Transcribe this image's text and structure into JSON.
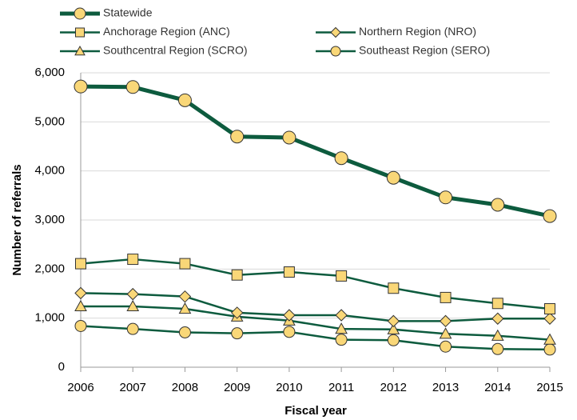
{
  "chart_data": {
    "type": "line",
    "x_label": "Fiscal year",
    "y_label": "Number of referrals",
    "categories": [
      "2006",
      "2007",
      "2008",
      "2009",
      "2010",
      "2011",
      "2012",
      "2013",
      "2014",
      "2015"
    ],
    "ylim": [
      0,
      6000
    ],
    "yticks": [
      0,
      {
        "value": 1000,
        "label": "1,000"
      },
      {
        "value": 2000,
        "label": "2,000"
      },
      {
        "value": 3000,
        "label": "3,000"
      },
      {
        "value": 4000,
        "label": "4,000"
      },
      {
        "value": 5000,
        "label": "5,000"
      },
      {
        "value": 6000,
        "label": "6,000"
      }
    ],
    "grid": true,
    "legend": "top",
    "marker_fill": "#f9d778",
    "series": [
      {
        "name": "Statewide",
        "color": "#0d5b3e",
        "marker": "circle",
        "line_width": 5,
        "values": [
          5720,
          5710,
          5440,
          4700,
          4680,
          4260,
          3860,
          3460,
          3310,
          3080
        ]
      },
      {
        "name": "Anchorage Region (ANC)",
        "color": "#0d5b3e",
        "marker": "square",
        "line_width": 2.5,
        "values": [
          2110,
          2200,
          2110,
          1880,
          1940,
          1860,
          1610,
          1420,
          1300,
          1190
        ]
      },
      {
        "name": "Northern Region (NRO)",
        "color": "#0d5b3e",
        "marker": "diamond",
        "line_width": 2.5,
        "values": [
          1510,
          1490,
          1440,
          1110,
          1060,
          1060,
          940,
          940,
          990,
          990
        ]
      },
      {
        "name": "Southcentral Region (SCRO)",
        "color": "#0d5b3e",
        "marker": "triangle",
        "line_width": 2.5,
        "values": [
          1240,
          1240,
          1190,
          1030,
          950,
          780,
          770,
          680,
          640,
          560
        ]
      },
      {
        "name": "Southeast Region (SERO)",
        "color": "#0d5b3e",
        "marker": "circle",
        "line_width": 2.5,
        "values": [
          840,
          780,
          710,
          690,
          720,
          560,
          550,
          420,
          370,
          360
        ]
      }
    ]
  }
}
